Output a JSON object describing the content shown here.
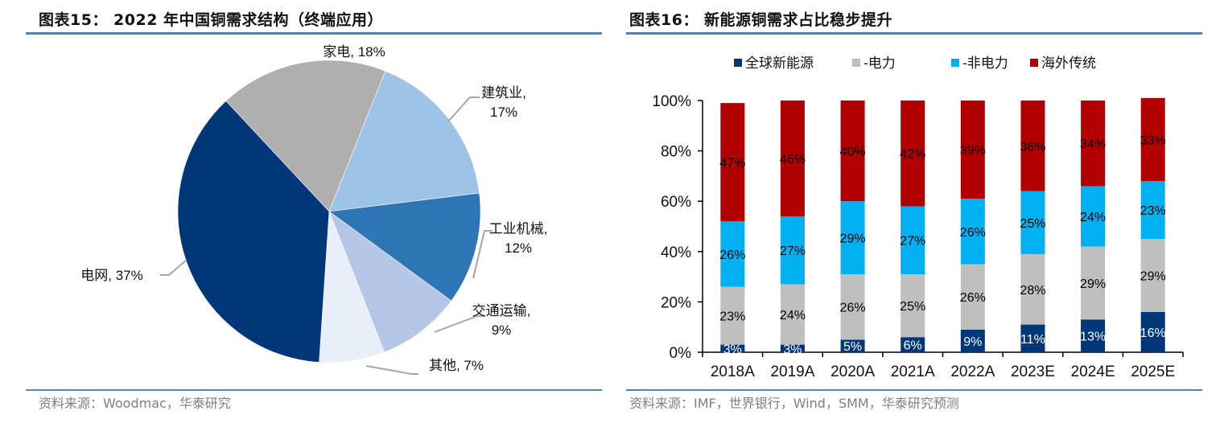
{
  "panels": {
    "left": {
      "title": "图表15： 2022 年中国铜需求结构（终端应用）",
      "source": "资料来源：Woodmac，华泰研究"
    },
    "right": {
      "title": "图表16： 新能源铜需求占比稳步提升",
      "source": "资料来源：IMF，世界银行，Wind，SMM，华泰研究预测"
    }
  },
  "chart_data": [
    {
      "type": "pie",
      "title": "2022 年中国铜需求结构（终端应用）",
      "slices": [
        {
          "name": "家电",
          "value": 18,
          "label_line1": "家电, 18%",
          "label_line2": "",
          "color": "#afafaf"
        },
        {
          "name": "建筑业",
          "value": 17,
          "label_line1": "建筑业,",
          "label_line2": "17%",
          "color": "#9dc3e6"
        },
        {
          "name": "工业机械",
          "value": 12,
          "label_line1": "工业机械,",
          "label_line2": "12%",
          "color": "#2e75b6"
        },
        {
          "name": "交通运输",
          "value": 9,
          "label_line1": "交通运输,",
          "label_line2": "9%",
          "color": "#b4c7e7"
        },
        {
          "name": "其他",
          "value": 7,
          "label_line1": "其他, 7%",
          "label_line2": "",
          "color": "#e9eef8"
        },
        {
          "name": "电网",
          "value": 37,
          "label_line1": "电网, 37%",
          "label_line2": "",
          "color": "#003778"
        }
      ],
      "start_angle_deg": -43
    },
    {
      "type": "bar",
      "stacked": true,
      "title": "新能源铜需求占比稳步提升",
      "categories": [
        "2018A",
        "2019A",
        "2020A",
        "2021A",
        "2022A",
        "2023E",
        "2024E",
        "2025E"
      ],
      "series": [
        {
          "name": "全球新能源",
          "legend": "全球新能源",
          "color": "#003778",
          "label_color": "#ffffff",
          "values": [
            3,
            3,
            5,
            6,
            9,
            11,
            13,
            16
          ]
        },
        {
          "name": "-电力",
          "legend": "-电力",
          "color": "#bfbfbf",
          "label_color": "#000000",
          "values": [
            23,
            24,
            26,
            25,
            26,
            28,
            29,
            29
          ]
        },
        {
          "name": "-非电力",
          "legend": "-非电力",
          "color": "#00b0f0",
          "label_color": "#000000",
          "values": [
            26,
            27,
            29,
            27,
            26,
            25,
            24,
            23
          ]
        },
        {
          "name": "海外传统",
          "legend": "海外传统",
          "color": "#b20000",
          "label_color": "#000000",
          "values": [
            47,
            46,
            40,
            42,
            39,
            36,
            34,
            33
          ]
        }
      ],
      "ylim": [
        0,
        100
      ],
      "yticks": [
        "0%",
        "20%",
        "40%",
        "60%",
        "80%",
        "100%"
      ],
      "ytick_values": [
        0,
        20,
        40,
        60,
        80,
        100
      ],
      "legend_position": "top",
      "grid": false
    }
  ]
}
